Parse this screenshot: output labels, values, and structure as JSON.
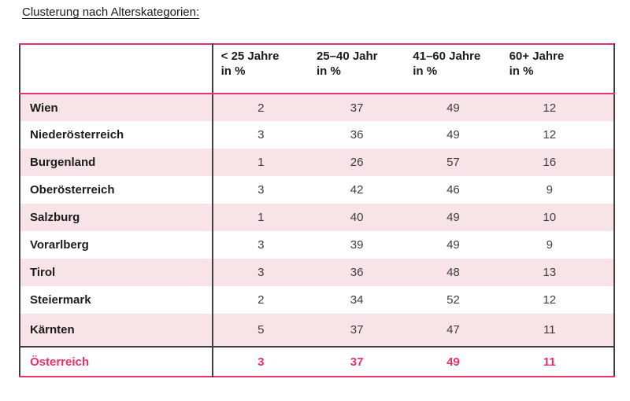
{
  "page": {
    "title": "Clusterung nach Alterskategorien:"
  },
  "colors": {
    "accent": "#E8316B",
    "row_stripe": "#F8E3E9",
    "border_dark": "#3F3F3F"
  },
  "table": {
    "columns": [
      {
        "line1": "< 25 Jahre",
        "line2": "in %"
      },
      {
        "line1": "25–40 Jahr",
        "line2": "in %"
      },
      {
        "line1": "41–60 Jahre",
        "line2": "in %"
      },
      {
        "line1": "60+ Jahre",
        "line2": "in %"
      }
    ],
    "rows": [
      {
        "label": "Wien",
        "values": [
          2,
          37,
          49,
          12
        ]
      },
      {
        "label": "Niederösterreich",
        "values": [
          3,
          36,
          49,
          12
        ]
      },
      {
        "label": "Burgenland",
        "values": [
          1,
          26,
          57,
          16
        ]
      },
      {
        "label": "Oberösterreich",
        "values": [
          3,
          42,
          46,
          9
        ]
      },
      {
        "label": "Salzburg",
        "values": [
          1,
          40,
          49,
          10
        ]
      },
      {
        "label": "Vorarlberg",
        "values": [
          3,
          39,
          49,
          9
        ]
      },
      {
        "label": "Tirol",
        "values": [
          3,
          36,
          48,
          13
        ]
      },
      {
        "label": "Steiermark",
        "values": [
          2,
          34,
          52,
          12
        ]
      },
      {
        "label": "Kärnten",
        "values": [
          5,
          37,
          47,
          11
        ]
      }
    ],
    "total": {
      "label": "Österreich",
      "values": [
        3,
        37,
        49,
        11
      ]
    }
  }
}
